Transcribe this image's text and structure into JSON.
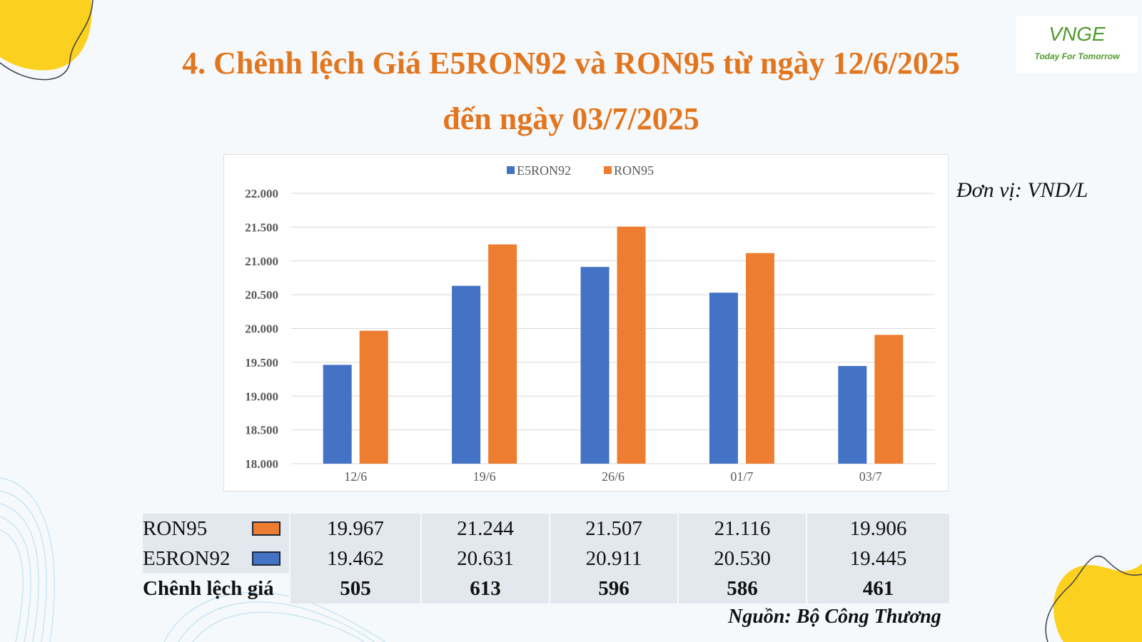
{
  "title": {
    "line1": "4. Chênh lệch Giá E5RON92 và RON95 từ ngày 12/6/2025",
    "line2": "đến ngày 03/7/2025"
  },
  "logo": {
    "mark": "VNGE",
    "tagline": "Today For Tomorrow"
  },
  "unit_note": "Đơn vị: VND/L",
  "source_note": "Nguồn: Bộ Công Thương",
  "colors": {
    "E5RON92": "#4472c4",
    "RON95": "#ed7d31",
    "title": "#e2761f",
    "accent_yellow": "#fcd01e"
  },
  "decor_icons": [
    "yellow-blob-top-left",
    "blue-wave-bottom-left",
    "yellow-blob-bottom-right"
  ],
  "chart_data": {
    "type": "bar",
    "title": "",
    "xlabel": "",
    "ylabel": "",
    "categories": [
      "12/6",
      "19/6",
      "26/6",
      "01/7",
      "03/7"
    ],
    "series": [
      {
        "name": "E5RON92",
        "values": [
          19462,
          20631,
          20911,
          20530,
          19445
        ]
      },
      {
        "name": "RON95",
        "values": [
          19967,
          21244,
          21507,
          21116,
          19906
        ]
      }
    ],
    "ylim": [
      18000,
      22000
    ],
    "yticks": [
      "18.000",
      "18.500",
      "19.000",
      "19.500",
      "20.000",
      "20.500",
      "21.000",
      "21.500",
      "22.000"
    ],
    "grid": true,
    "legend_position": "top-center"
  },
  "table": {
    "rows": [
      {
        "label": "RON95",
        "values": [
          "19.967",
          "21.244",
          "21.507",
          "21.116",
          "19.906"
        ]
      },
      {
        "label": "E5RON92",
        "values": [
          "19.462",
          "20.631",
          "20.911",
          "20.530",
          "19.445"
        ]
      },
      {
        "label": "Chênh lệch giá",
        "values": [
          "505",
          "613",
          "596",
          "586",
          "461"
        ]
      }
    ]
  }
}
